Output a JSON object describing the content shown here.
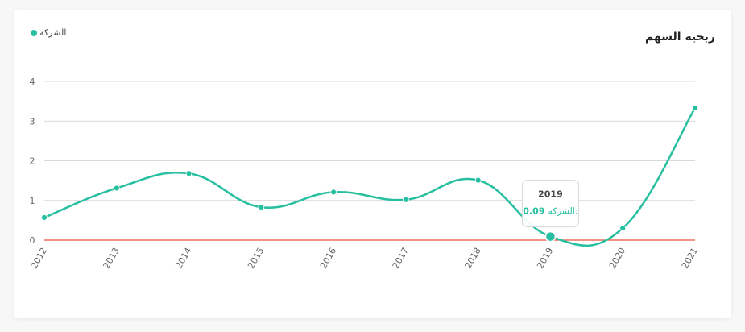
{
  "chart_data": {
    "type": "line",
    "title": "ربحية السهم",
    "x": [
      "2012",
      "2013",
      "2014",
      "2015",
      "2016",
      "2017",
      "2018",
      "2019",
      "2020",
      "2021"
    ],
    "series": [
      {
        "name": "الشركة",
        "values": [
          0.57,
          1.31,
          1.68,
          0.83,
          1.21,
          1.02,
          1.51,
          0.09,
          0.3,
          3.33
        ],
        "color": "#26bf9f"
      }
    ],
    "ylim": [
      0,
      4
    ],
    "yticks": [
      "0",
      "1",
      "2",
      "3",
      "4"
    ],
    "baseline": {
      "value": 0,
      "color": "#e8523f"
    },
    "grid": true,
    "legend_position": "top-left",
    "tooltip": {
      "category": "2019",
      "series_label": "الشركة:",
      "value": "0.09"
    }
  }
}
